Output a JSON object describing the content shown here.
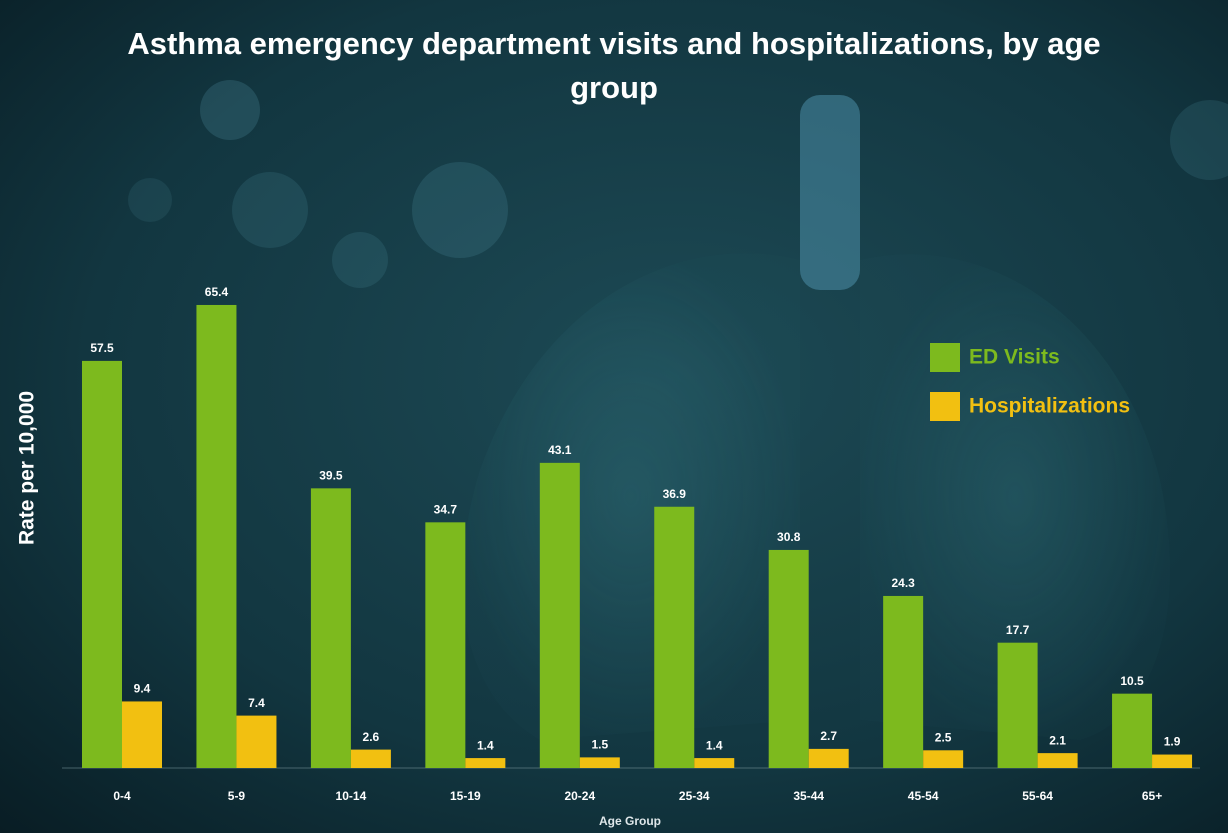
{
  "chart_data": {
    "type": "bar",
    "title": "Asthma emergency department visits and hospitalizations, by age group",
    "x_label": "Age Group",
    "y_label": "Rate per 10,000",
    "categories": [
      "0-4",
      "5-9",
      "10-14",
      "15-19",
      "20-24",
      "25-34",
      "35-44",
      "45-54",
      "55-64",
      "65+"
    ],
    "series": [
      {
        "name": "ED Visits",
        "color": "#7dba1e",
        "values": [
          57.5,
          65.4,
          39.5,
          34.7,
          43.1,
          36.9,
          30.8,
          24.3,
          17.7,
          10.5
        ]
      },
      {
        "name": "Hospitalizations",
        "color": "#f2c011",
        "values": [
          9.4,
          7.4,
          2.6,
          1.4,
          1.5,
          1.4,
          2.7,
          2.5,
          2.1,
          1.9
        ]
      }
    ],
    "legend": "right"
  }
}
